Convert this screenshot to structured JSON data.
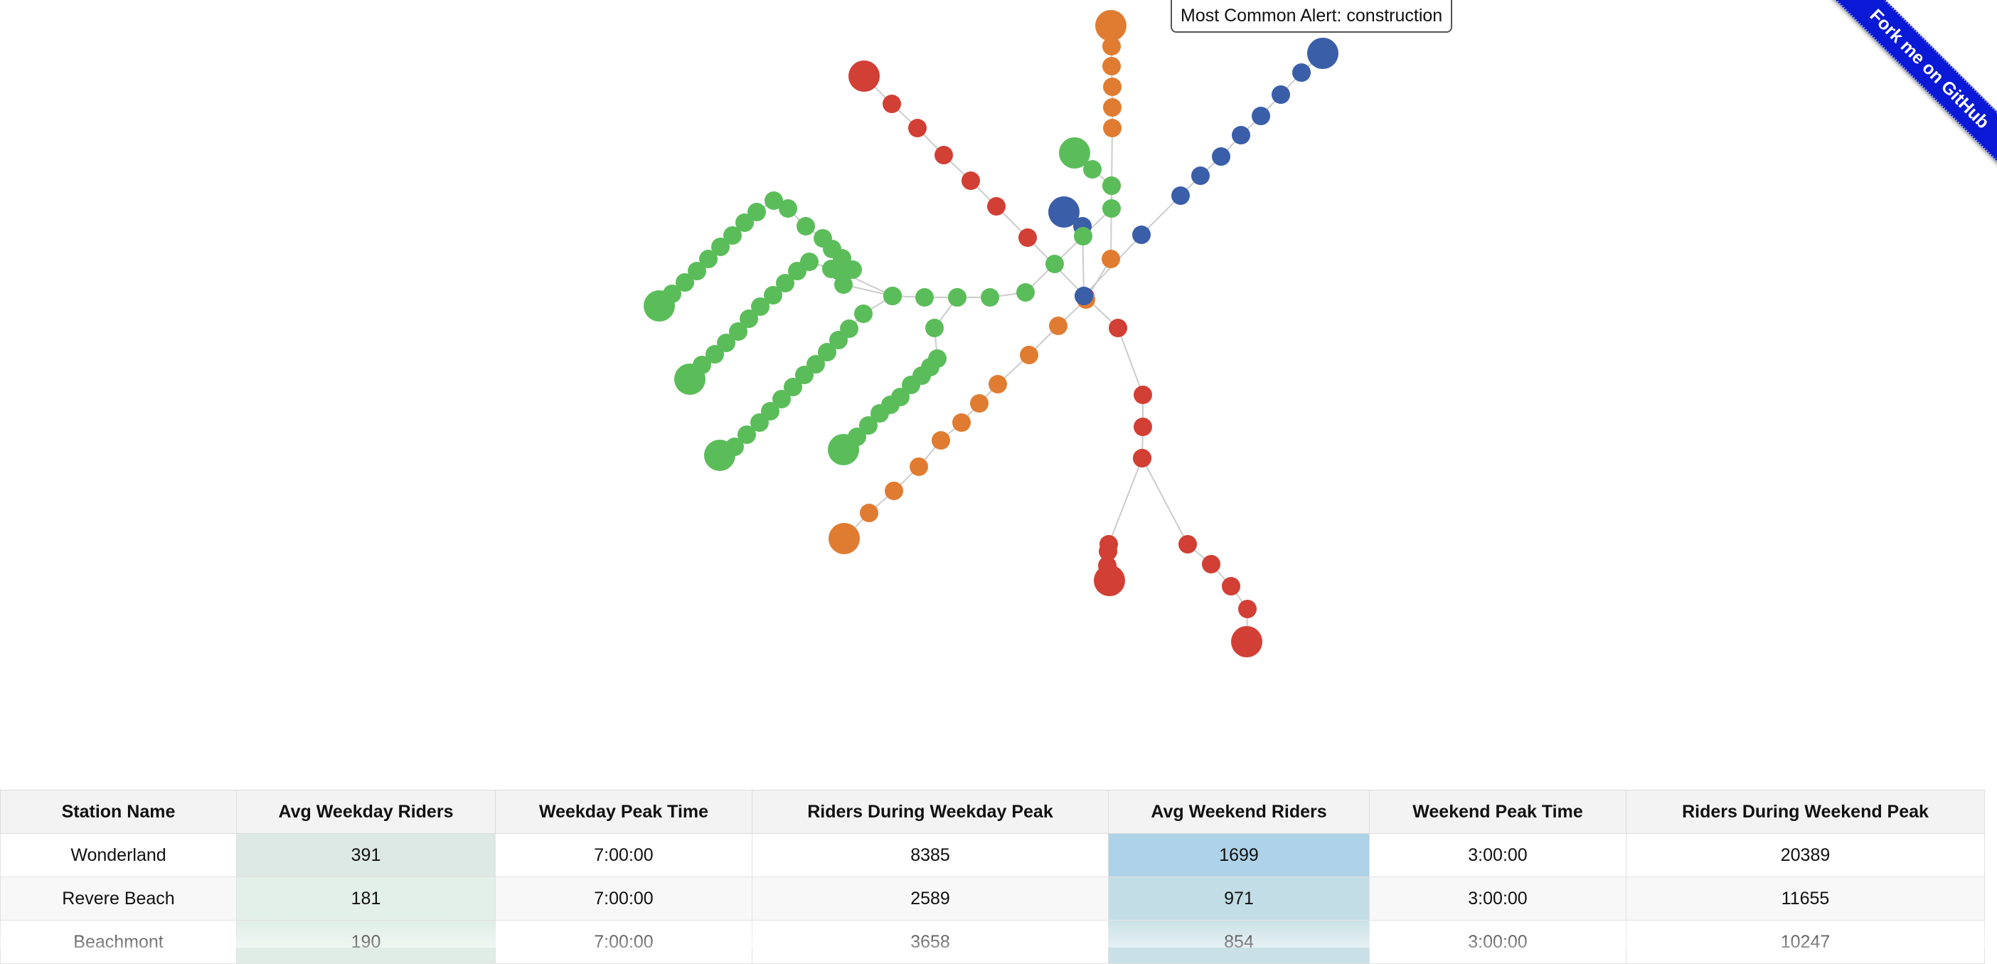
{
  "tooltip": {
    "text": "Most Common Alert: construction"
  },
  "ribbon": {
    "label": "Fork me on GitHub"
  },
  "colors": {
    "red": "#d13f35",
    "orange": "#e07c32",
    "green": "#5bbd5a",
    "blue": "#3a5ea8",
    "edge": "#cccccc",
    "heat_weekday": "#dce9e5",
    "heat_weekend_high": "#aed2e8",
    "heat_weekend_mid": "#c3dde6"
  },
  "table": {
    "headers": [
      "Station Name",
      "Avg Weekday Riders",
      "Weekday Peak Time",
      "Riders During Weekday Peak",
      "Avg Weekend Riders",
      "Weekend Peak Time",
      "Riders During Weekend Peak"
    ],
    "rows": [
      [
        "Wonderland",
        "391",
        "7:00:00",
        "8385",
        "1699",
        "3:00:00",
        "20389"
      ],
      [
        "Revere Beach",
        "181",
        "7:00:00",
        "2589",
        "971",
        "3:00:00",
        "11655"
      ],
      [
        "Beachmont",
        "190",
        "7:00:00",
        "3658",
        "854",
        "3:00:00",
        "10247"
      ]
    ]
  }
}
